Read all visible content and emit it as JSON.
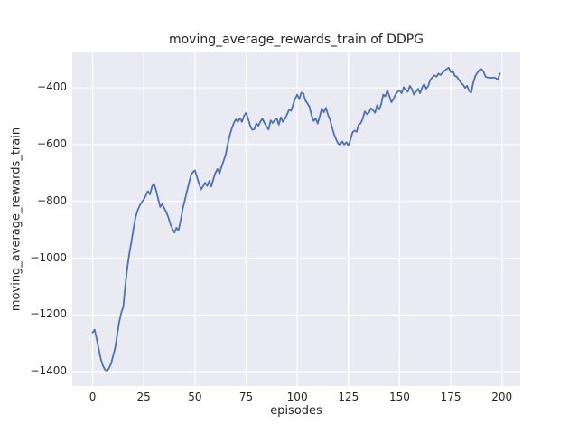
{
  "chart_data": {
    "type": "line",
    "title": "moving_average_rewards_train of DDPG",
    "xlabel": "episodes",
    "ylabel": "moving_average_rewards_train",
    "grid": true,
    "legend_position": "none",
    "x_ticks": [
      0,
      25,
      50,
      75,
      100,
      125,
      150,
      175,
      200
    ],
    "x_tick_labels": [
      "0",
      "25",
      "50",
      "75",
      "100",
      "125",
      "150",
      "175",
      "200"
    ],
    "y_ticks": [
      -400,
      -600,
      -800,
      -1000,
      -1200,
      -1400
    ],
    "y_tick_labels": [
      "−400",
      "−600",
      "−800",
      "−1000",
      "−1200",
      "−1400"
    ],
    "xlim": [
      -9.95,
      208.95
    ],
    "ylim": [
      -1450.4,
      -275.6
    ],
    "colors": {
      "figure_background": "#ffffff",
      "axes_background": "#eaeaf2",
      "grid_color": "#ffffff",
      "line_color": "#4c72b0",
      "text_color": "#262626"
    },
    "series": [
      {
        "name": "moving_average_rewards_train",
        "x_start": 0,
        "x_step": 1,
        "values": [
          -1262,
          -1252,
          -1285,
          -1320,
          -1355,
          -1378,
          -1392,
          -1397,
          -1388,
          -1372,
          -1345,
          -1317,
          -1270,
          -1225,
          -1192,
          -1170,
          -1095,
          -1030,
          -981,
          -940,
          -895,
          -856,
          -832,
          -815,
          -803,
          -793,
          -780,
          -764,
          -776,
          -748,
          -738,
          -760,
          -790,
          -820,
          -810,
          -824,
          -838,
          -856,
          -880,
          -897,
          -910,
          -893,
          -902,
          -868,
          -828,
          -798,
          -768,
          -738,
          -710,
          -697,
          -691,
          -714,
          -738,
          -758,
          -747,
          -734,
          -746,
          -728,
          -748,
          -722,
          -700,
          -686,
          -702,
          -678,
          -658,
          -636,
          -600,
          -568,
          -544,
          -524,
          -511,
          -520,
          -507,
          -520,
          -499,
          -488,
          -509,
          -534,
          -548,
          -546,
          -526,
          -534,
          -519,
          -509,
          -524,
          -536,
          -547,
          -515,
          -524,
          -514,
          -509,
          -530,
          -504,
          -520,
          -509,
          -494,
          -477,
          -481,
          -458,
          -438,
          -424,
          -440,
          -417,
          -420,
          -445,
          -455,
          -467,
          -497,
          -517,
          -508,
          -526,
          -500,
          -473,
          -486,
          -470,
          -495,
          -512,
          -540,
          -564,
          -582,
          -597,
          -601,
          -589,
          -600,
          -592,
          -603,
          -583,
          -557,
          -551,
          -555,
          -530,
          -525,
          -509,
          -483,
          -493,
          -488,
          -472,
          -479,
          -488,
          -462,
          -477,
          -458,
          -424,
          -430,
          -409,
          -429,
          -451,
          -440,
          -424,
          -414,
          -409,
          -419,
          -398,
          -407,
          -414,
          -393,
          -404,
          -424,
          -414,
          -403,
          -419,
          -399,
          -387,
          -403,
          -394,
          -372,
          -364,
          -356,
          -361,
          -350,
          -355,
          -347,
          -340,
          -334,
          -329,
          -345,
          -340,
          -358,
          -361,
          -372,
          -382,
          -389,
          -400,
          -393,
          -411,
          -417,
          -382,
          -359,
          -347,
          -337,
          -334,
          -343,
          -361,
          -364,
          -364,
          -365,
          -364,
          -366,
          -372,
          -349
        ]
      }
    ]
  }
}
